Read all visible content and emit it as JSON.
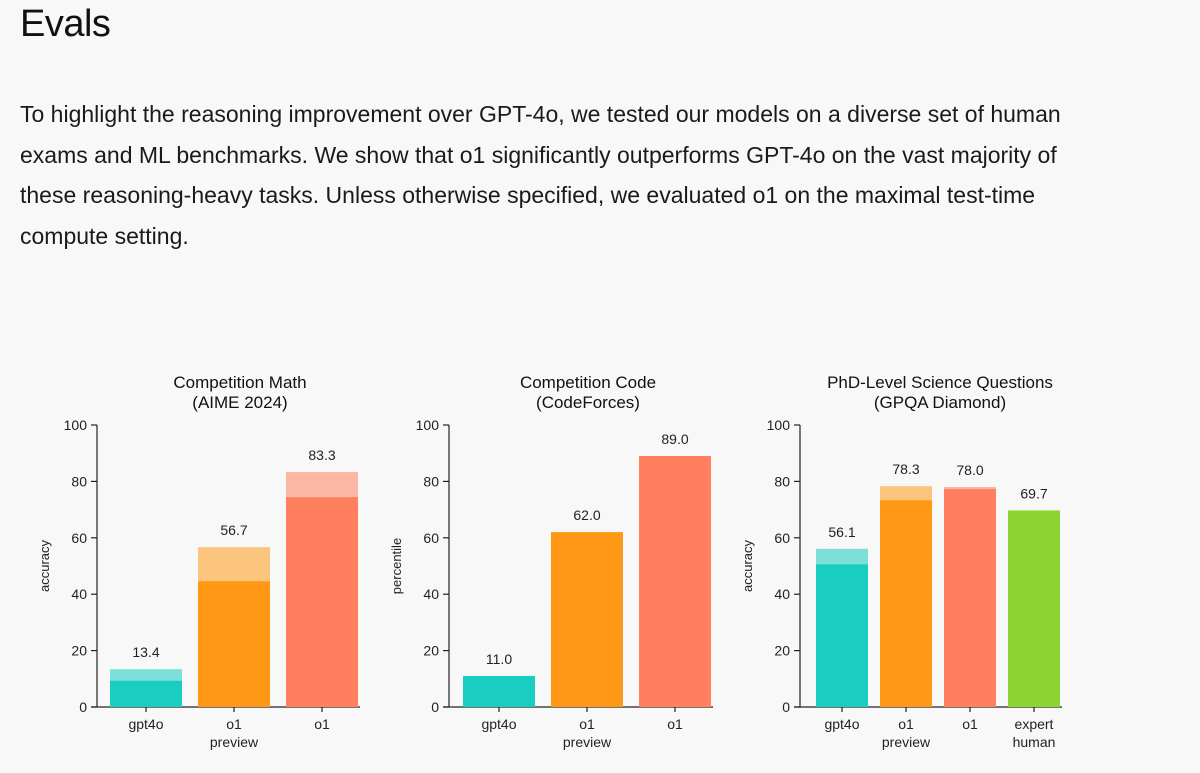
{
  "page": {
    "title": "Evals",
    "intro": "To highlight the reasoning improvement over GPT-4o, we tested our models on a diverse set of human exams and ML benchmarks. We show that o1 significantly outperforms GPT-4o on the vast majority of these reasoning-heavy tasks. Unless otherwise specified, we evaluated o1 on the maximal test-time compute setting."
  },
  "colors": {
    "gpt4o": "#19CEC0",
    "gpt4o_light": "#7DE0D8",
    "o1_preview": "#FF9814",
    "o1_preview_light": "#FCC57E",
    "o1": "#FF7F5E",
    "o1_light": "#FCB6A4",
    "expert_human": "#8DD433"
  },
  "chart_data": [
    {
      "type": "bar",
      "title": "Competition Math",
      "subtitle": "(AIME 2024)",
      "ylabel": "accuracy",
      "ylim": [
        0,
        100
      ],
      "yticks": [
        0,
        20,
        40,
        60,
        80,
        100
      ],
      "categories": [
        "gpt4o",
        "o1 preview",
        "o1"
      ],
      "values": [
        13.4,
        56.7,
        83.3
      ],
      "base_values": [
        9.3,
        44.6,
        74.4
      ],
      "labels": [
        "13.4",
        "56.7",
        "83.3"
      ],
      "color_keys": [
        "gpt4o",
        "o1_preview",
        "o1"
      ]
    },
    {
      "type": "bar",
      "title": "Competition Code",
      "subtitle": "(CodeForces)",
      "ylabel": "percentile",
      "ylim": [
        0,
        100
      ],
      "yticks": [
        0,
        20,
        40,
        60,
        80,
        100
      ],
      "categories": [
        "gpt4o",
        "o1 preview",
        "o1"
      ],
      "values": [
        11.0,
        62.0,
        89.0
      ],
      "base_values": [
        11.0,
        62.0,
        89.0
      ],
      "labels": [
        "11.0",
        "62.0",
        "89.0"
      ],
      "color_keys": [
        "gpt4o",
        "o1_preview",
        "o1"
      ]
    },
    {
      "type": "bar",
      "title": "PhD-Level Science Questions",
      "subtitle": "(GPQA Diamond)",
      "ylabel": "accuracy",
      "ylim": [
        0,
        100
      ],
      "yticks": [
        0,
        20,
        40,
        60,
        80,
        100
      ],
      "categories": [
        "gpt4o",
        "o1 preview",
        "o1",
        "expert human"
      ],
      "values": [
        56.1,
        78.3,
        78.0,
        69.7
      ],
      "base_values": [
        50.6,
        73.3,
        77.3,
        69.7
      ],
      "labels": [
        "56.1",
        "78.3",
        "78.0",
        "69.7"
      ],
      "color_keys": [
        "gpt4o",
        "o1_preview",
        "o1",
        "expert_human"
      ]
    }
  ]
}
